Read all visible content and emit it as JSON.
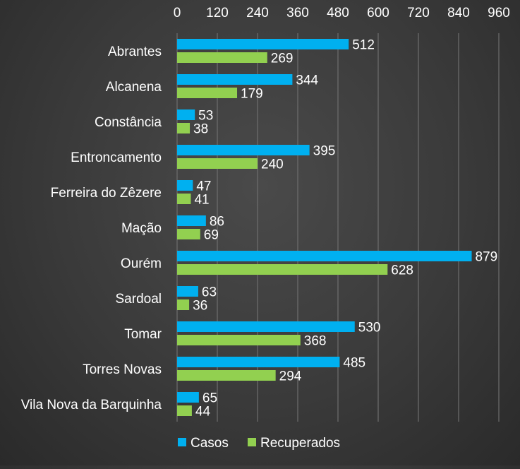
{
  "chart_data": {
    "type": "bar",
    "orientation": "horizontal",
    "categories": [
      "Abrantes",
      "Alcanena",
      "Constância",
      "Entroncamento",
      "Ferreira do Zêzere",
      "Mação",
      "Ourém",
      "Sardoal",
      "Tomar",
      "Torres Novas",
      "Vila Nova da Barquinha"
    ],
    "series": [
      {
        "name": "Casos",
        "color": "#00b0f0",
        "values": [
          512,
          344,
          53,
          395,
          47,
          86,
          879,
          63,
          530,
          485,
          65
        ]
      },
      {
        "name": "Recuperados",
        "color": "#92d050",
        "values": [
          269,
          179,
          38,
          240,
          41,
          69,
          628,
          36,
          368,
          294,
          44
        ]
      }
    ],
    "xlim": [
      0,
      960
    ],
    "x_ticks": [
      0,
      120,
      240,
      360,
      480,
      600,
      720,
      840,
      960
    ],
    "x_axis_position": "top",
    "grid": true,
    "data_labels": true,
    "legend": "bottom",
    "title": "",
    "xlabel": "",
    "ylabel": ""
  }
}
